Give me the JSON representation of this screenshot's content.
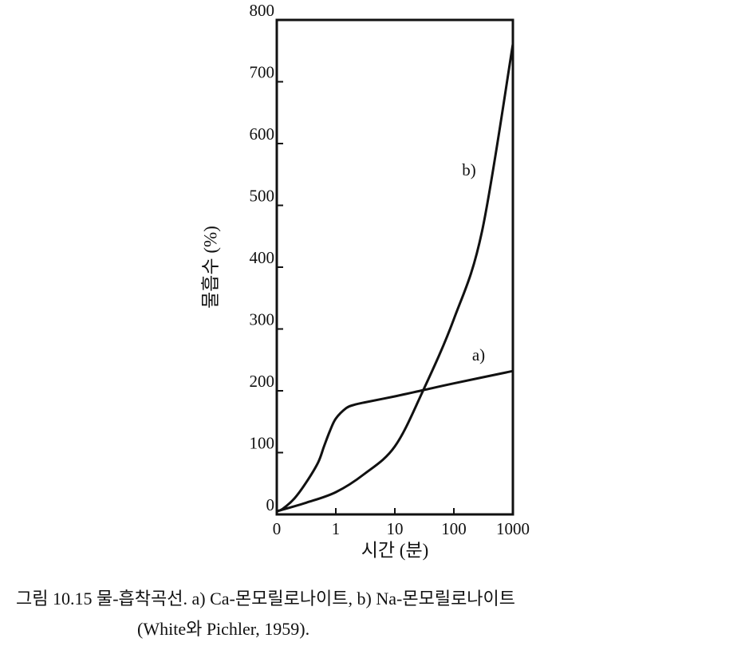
{
  "chart_data": {
    "type": "line",
    "x_label": "시간 (분)",
    "y_label": "물흡수 (%)",
    "xscale": "symlog",
    "xlim": [
      0,
      1000
    ],
    "xticks": [
      0,
      1,
      10,
      100,
      {
        "value": 1000,
        "label": "1000"
      }
    ],
    "ylim": [
      0,
      800
    ],
    "yticks": [
      0,
      100,
      200,
      300,
      400,
      500,
      600,
      700,
      800
    ],
    "grid": false,
    "series": [
      {
        "name": "a)",
        "color": "#111111",
        "x": [
          0,
          0.1,
          0.3,
          0.5,
          0.7,
          0.8,
          0.9,
          1,
          1.5,
          2,
          3,
          10,
          30,
          100,
          1000
        ],
        "values": [
          5,
          9,
          26,
          52,
          84,
          110,
          135,
          155,
          172,
          177,
          181,
          191,
          201,
          212,
          232
        ]
      },
      {
        "name": "b)",
        "color": "#111111",
        "x": [
          0,
          0.5,
          1,
          3,
          10,
          30,
          100,
          300,
          1000
        ],
        "values": [
          5,
          19,
          36,
          65,
          110,
          200,
          316,
          458,
          761
        ]
      }
    ],
    "caption": [
      "그림  10.15  물-흡착곡선.  a)  Ca-몬모릴로나이트,  b)  Na-몬모릴로나이트",
      "(White와  Pichler,  1959)."
    ]
  }
}
